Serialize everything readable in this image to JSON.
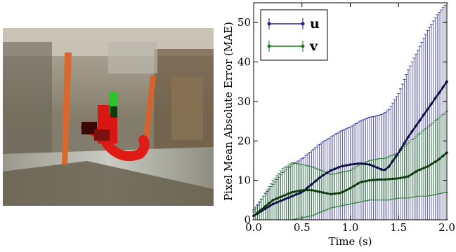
{
  "photo": {
    "description_colors": {
      "background": "#8a8676",
      "pole": "#d4632e",
      "track_red": "#e01a14",
      "track_dark": "#5a0e0a",
      "track_green": "#2fbf2a"
    }
  },
  "chart_data": {
    "type": "line",
    "xlabel": "Time (s)",
    "ylabel": "Pixel Mean Absolute Error (MAE)",
    "xlim": [
      0.0,
      2.0
    ],
    "ylim": [
      0,
      55
    ],
    "xticks": [
      "0.0",
      "0.5",
      "1.0",
      "1.5",
      "2.0"
    ],
    "yticks": [
      "0",
      "10",
      "20",
      "30",
      "40",
      "50"
    ],
    "legend_position": "top-left",
    "grid": false,
    "x": [
      0.0,
      0.1,
      0.2,
      0.3,
      0.4,
      0.5,
      0.6,
      0.7,
      0.8,
      0.9,
      1.0,
      1.1,
      1.2,
      1.3,
      1.35,
      1.4,
      1.5,
      1.6,
      1.7,
      1.8,
      1.9,
      2.0
    ],
    "series": [
      {
        "name": "u",
        "color": "#1f1f8c",
        "values": [
          1.0,
          2.5,
          4.0,
          5.0,
          6.0,
          7.0,
          9.0,
          11.0,
          12.5,
          13.5,
          14.0,
          14.3,
          14.0,
          13.0,
          12.5,
          13.5,
          17.0,
          21.0,
          24.5,
          28.0,
          31.5,
          35.0
        ],
        "err_low": [
          0.0,
          0.0,
          0.0,
          0.0,
          0.0,
          0.0,
          0.0,
          0.0,
          0.0,
          0.0,
          0.0,
          0.0,
          0.0,
          0.0,
          0.0,
          0.0,
          0.0,
          0.0,
          0.0,
          0.0,
          0.0,
          0.0
        ],
        "err_high": [
          2.5,
          6.0,
          9.0,
          12.0,
          14.0,
          15.5,
          17.5,
          19.5,
          21.0,
          22.5,
          23.5,
          25.0,
          26.0,
          26.5,
          27.0,
          28.0,
          32.0,
          38.0,
          43.0,
          48.0,
          52.0,
          55.0
        ]
      },
      {
        "name": "v",
        "color": "#1e7a1e",
        "values": [
          1.0,
          3.0,
          5.0,
          6.0,
          7.0,
          7.5,
          7.5,
          7.0,
          6.5,
          6.8,
          8.0,
          9.5,
          10.0,
          10.2,
          10.2,
          10.3,
          10.5,
          11.0,
          12.5,
          13.5,
          15.0,
          17.0
        ],
        "err_low": [
          0.0,
          0.0,
          0.0,
          0.0,
          0.0,
          0.5,
          1.0,
          2.0,
          3.0,
          3.5,
          4.0,
          4.5,
          5.0,
          5.0,
          5.0,
          5.0,
          5.5,
          5.5,
          6.0,
          6.0,
          6.5,
          7.0
        ],
        "err_high": [
          2.0,
          6.0,
          10.0,
          13.0,
          14.5,
          14.0,
          13.5,
          12.5,
          11.5,
          12.0,
          12.5,
          14.0,
          15.0,
          15.5,
          15.5,
          16.0,
          17.0,
          19.5,
          21.5,
          23.5,
          25.5,
          27.5
        ]
      }
    ]
  }
}
